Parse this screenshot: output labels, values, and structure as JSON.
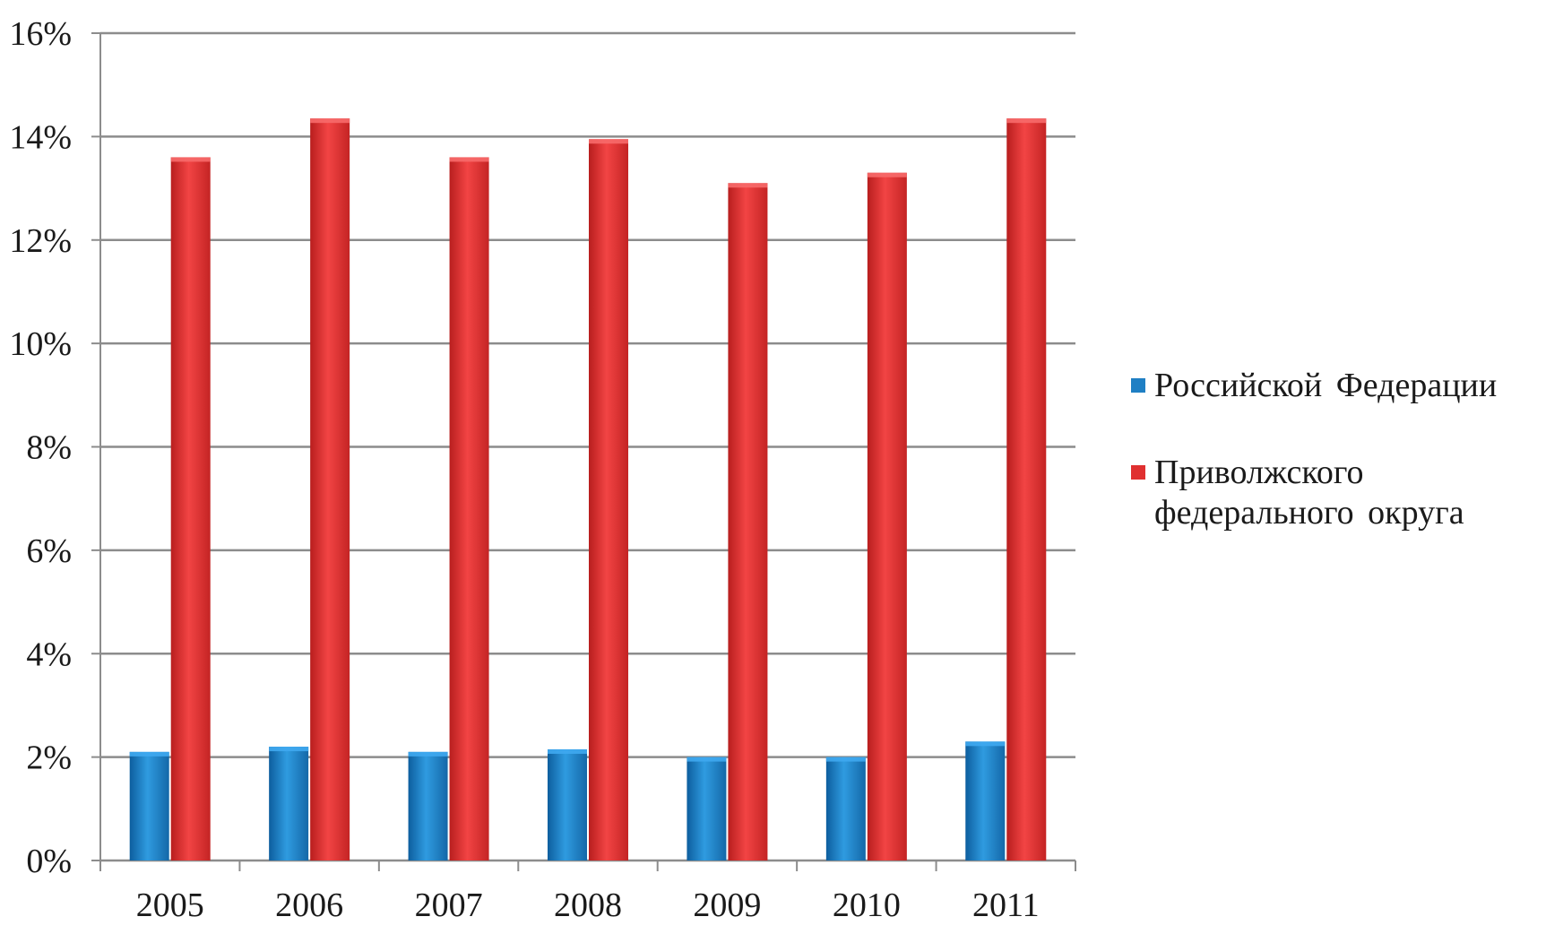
{
  "chart_data": {
    "type": "bar",
    "title": "",
    "xlabel": "",
    "ylabel": "",
    "categories": [
      "2005",
      "2006",
      "2007",
      "2008",
      "2009",
      "2010",
      "2011"
    ],
    "series": [
      {
        "name": "Российской Федерации",
        "color": "#1f7fc4",
        "values": [
          2.1,
          2.2,
          2.1,
          2.15,
          2.0,
          2.0,
          2.3
        ]
      },
      {
        "name": "Приволжского федерального округа",
        "color": "#e03030",
        "values": [
          13.6,
          14.35,
          13.6,
          13.95,
          13.1,
          13.3,
          14.35
        ]
      }
    ],
    "ylim": [
      0,
      16
    ],
    "yticks": [
      0,
      2,
      4,
      6,
      8,
      10,
      12,
      14,
      16
    ],
    "ytick_labels": [
      "0%",
      "2%",
      "4%",
      "6%",
      "8%",
      "10%",
      "12%",
      "14%",
      "16%"
    ],
    "grid": true,
    "legend_position": "right"
  }
}
